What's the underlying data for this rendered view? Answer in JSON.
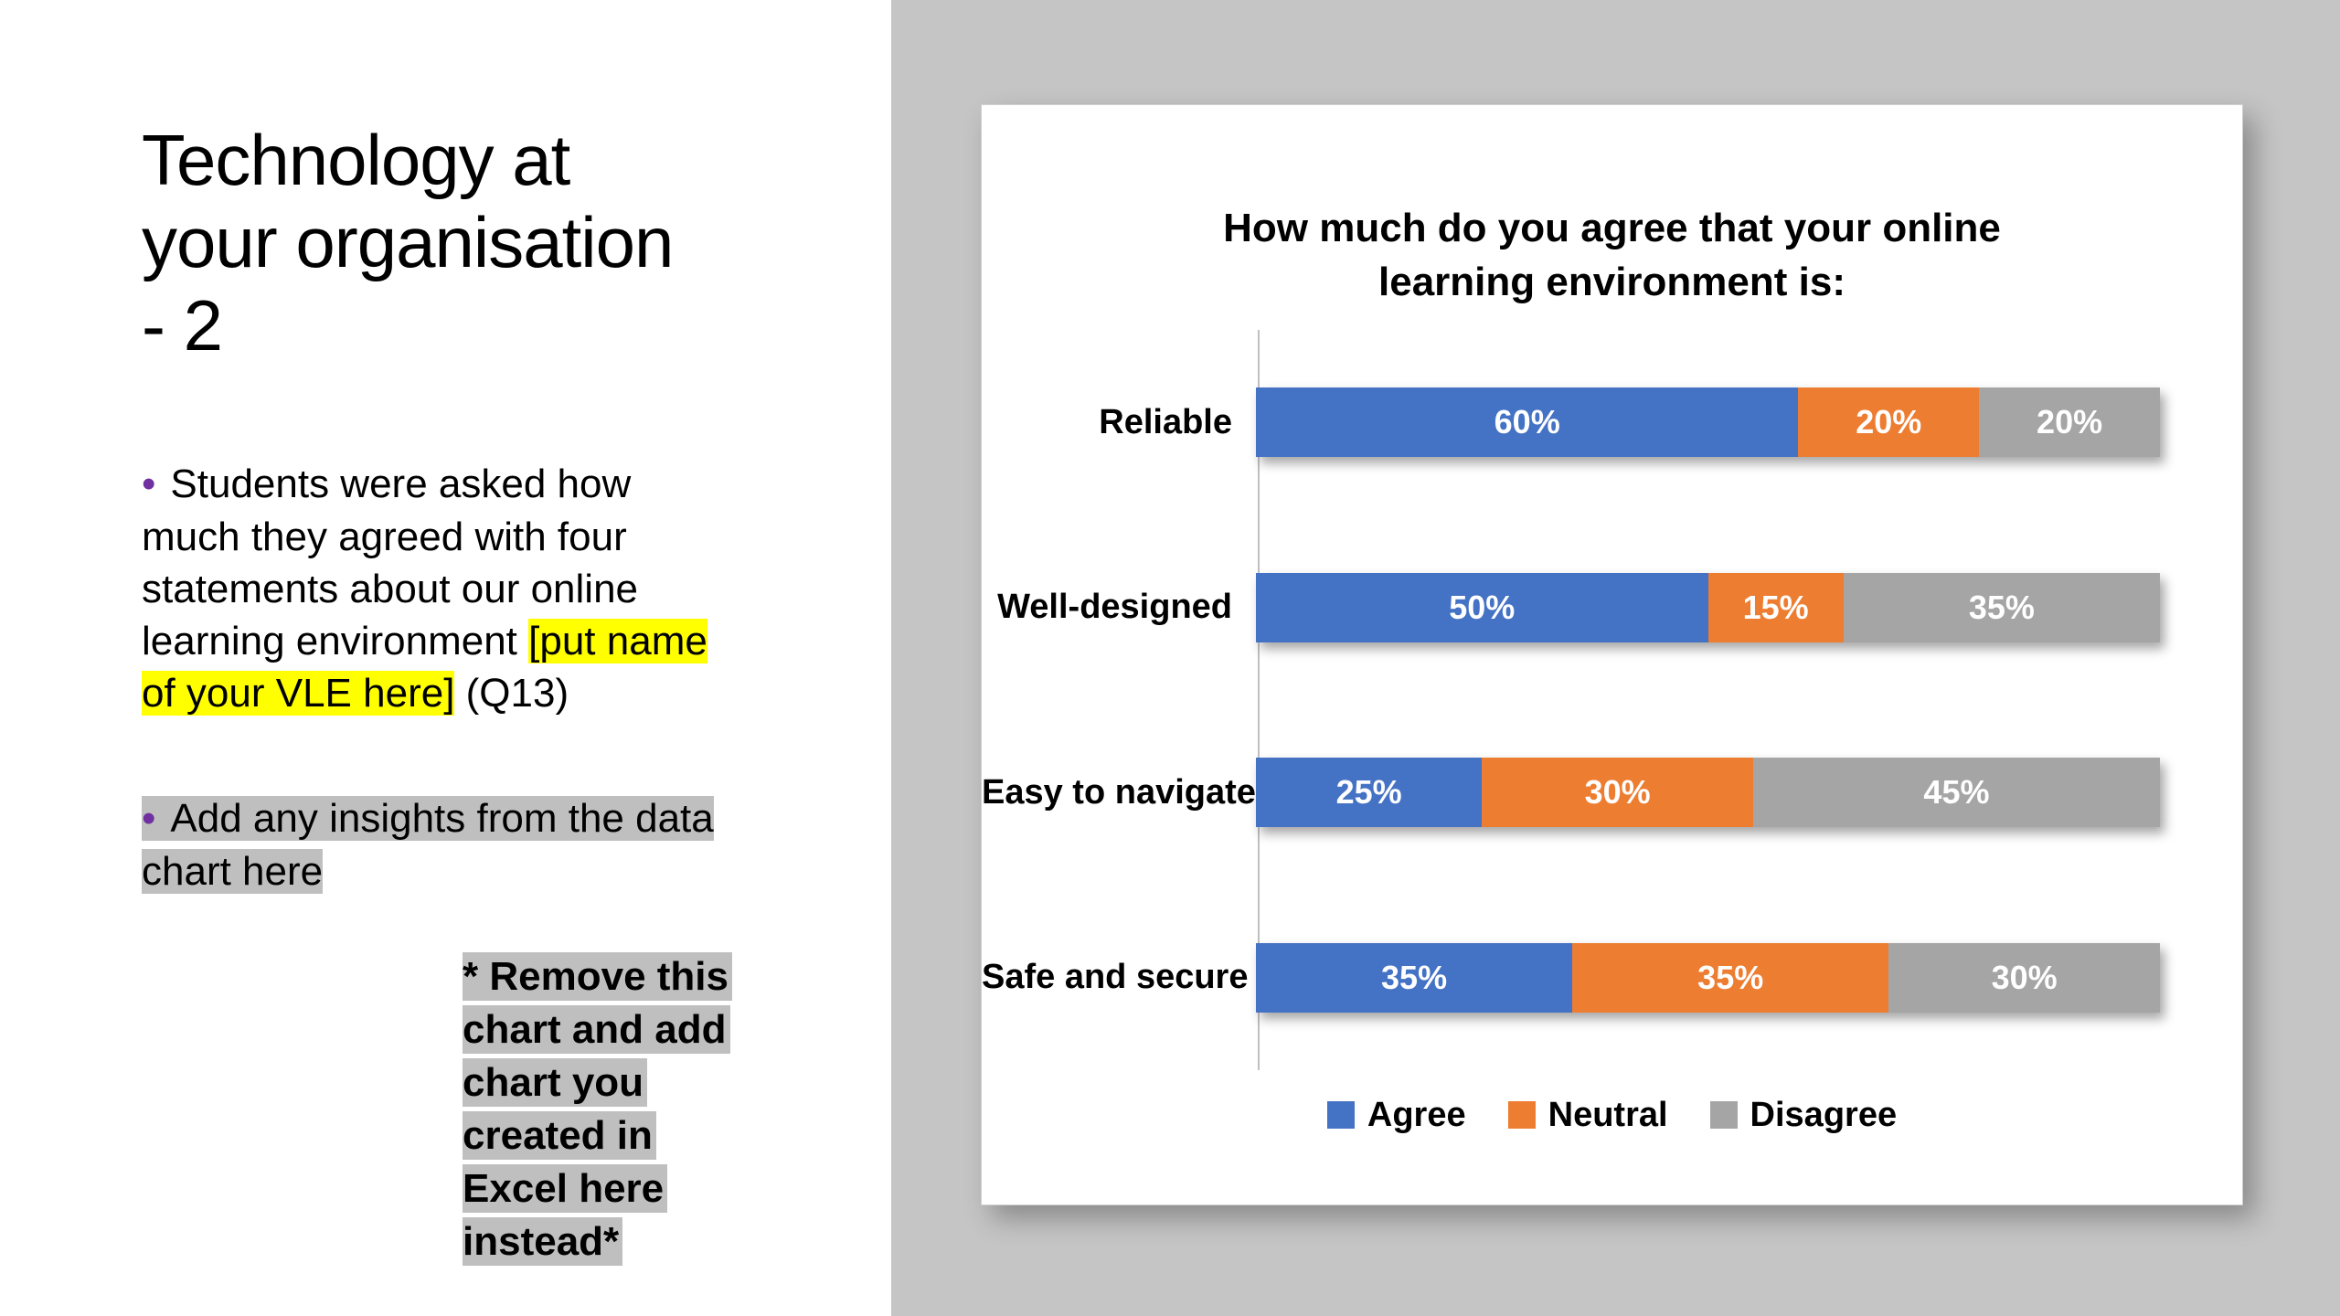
{
  "slide": {
    "title_lines": [
      "Technology at",
      "your organisation",
      "- 2"
    ],
    "bullet1": {
      "bullet": "•",
      "text_before": "Students were asked how much they agreed with four statements about our online learning environment ",
      "highlight": "[put name of your VLE here]",
      "text_after": " (Q13)"
    },
    "bullet2": {
      "bullet": "•",
      "text": "Add any insights from the data chart here"
    },
    "note_lines": [
      "* Remove this",
      "chart and add",
      "chart you",
      "created in",
      "Excel here",
      "instead*"
    ],
    "colors": {
      "bullet": "#7030A0",
      "yellow_highlight": "#FFFF00",
      "gray_highlight": "#BFBFBF",
      "right_background": "#C5C5C5"
    }
  },
  "chart_data": {
    "type": "bar",
    "orientation": "horizontal",
    "stacked": true,
    "title": "How much do you agree that your online learning environment is:",
    "categories": [
      "Reliable",
      "Well-designed",
      "Easy to navigate",
      "Safe and secure"
    ],
    "series": [
      {
        "name": "Agree",
        "color": "#4472C4",
        "values": [
          60,
          50,
          25,
          35
        ]
      },
      {
        "name": "Neutral",
        "color": "#ED7D31",
        "values": [
          20,
          15,
          30,
          35
        ]
      },
      {
        "name": "Disagree",
        "color": "#A5A5A5",
        "values": [
          20,
          35,
          45,
          30
        ]
      }
    ],
    "value_format": "percent",
    "xlim": [
      0,
      100
    ],
    "data_labels": true,
    "legend_position": "bottom",
    "grid": false
  }
}
